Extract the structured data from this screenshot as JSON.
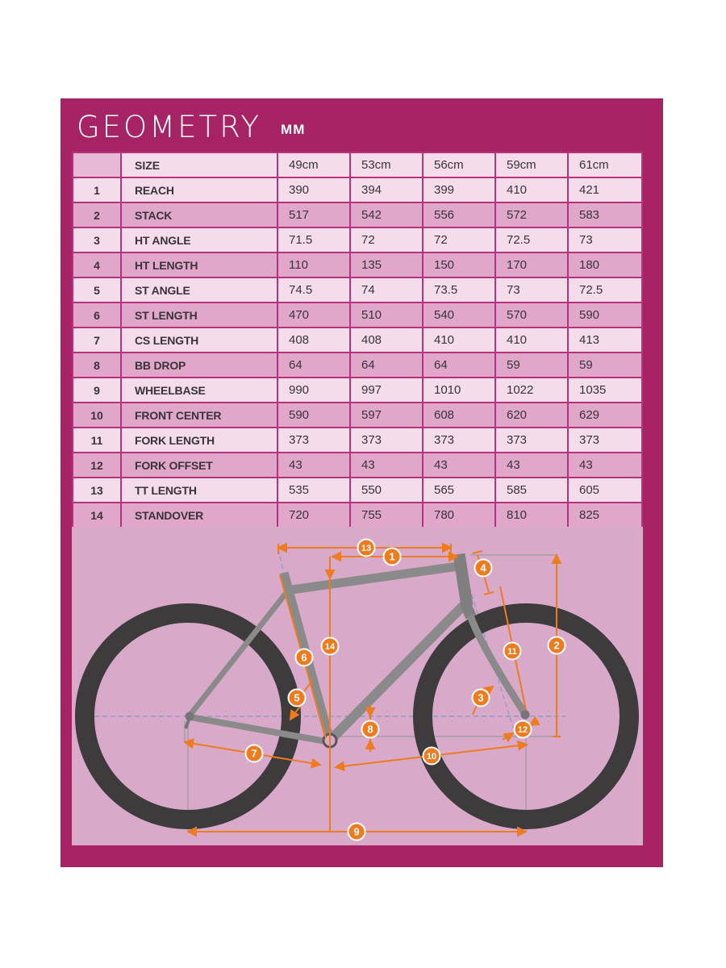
{
  "title": {
    "text": "GEOMETRY",
    "unit": "MM"
  },
  "table": {
    "size_label": "SIZE",
    "columns": [
      "49cm",
      "53cm",
      "56cm",
      "59cm",
      "61cm"
    ],
    "rows": [
      {
        "num": "1",
        "label": "REACH",
        "values": [
          "390",
          "394",
          "399",
          "410",
          "421"
        ]
      },
      {
        "num": "2",
        "label": "STACK",
        "values": [
          "517",
          "542",
          "556",
          "572",
          "583"
        ]
      },
      {
        "num": "3",
        "label": "HT ANGLE",
        "values": [
          "71.5",
          "72",
          "72",
          "72.5",
          "73"
        ]
      },
      {
        "num": "4",
        "label": "HT LENGTH",
        "values": [
          "110",
          "135",
          "150",
          "170",
          "180"
        ]
      },
      {
        "num": "5",
        "label": "ST ANGLE",
        "values": [
          "74.5",
          "74",
          "73.5",
          "73",
          "72.5"
        ]
      },
      {
        "num": "6",
        "label": "ST LENGTH",
        "values": [
          "470",
          "510",
          "540",
          "570",
          "590"
        ]
      },
      {
        "num": "7",
        "label": "CS LENGTH",
        "values": [
          "408",
          "408",
          "410",
          "410",
          "413"
        ]
      },
      {
        "num": "8",
        "label": "BB DROP",
        "values": [
          "64",
          "64",
          "64",
          "59",
          "59"
        ]
      },
      {
        "num": "9",
        "label": "WHEELBASE",
        "values": [
          "990",
          "997",
          "1010",
          "1022",
          "1035"
        ]
      },
      {
        "num": "10",
        "label": "FRONT CENTER",
        "values": [
          "590",
          "597",
          "608",
          "620",
          "629"
        ]
      },
      {
        "num": "11",
        "label": "FORK LENGTH",
        "values": [
          "373",
          "373",
          "373",
          "373",
          "373"
        ]
      },
      {
        "num": "12",
        "label": "FORK OFFSET",
        "values": [
          "43",
          "43",
          "43",
          "43",
          "43"
        ]
      },
      {
        "num": "13",
        "label": "TT LENGTH",
        "values": [
          "535",
          "550",
          "565",
          "585",
          "605"
        ]
      },
      {
        "num": "14",
        "label": "STANDOVER",
        "values": [
          "720",
          "755",
          "780",
          "810",
          "825"
        ]
      }
    ]
  },
  "diagram": {
    "callouts": [
      "1",
      "2",
      "3",
      "4",
      "5",
      "6",
      "7",
      "8",
      "9",
      "10",
      "11",
      "12",
      "13",
      "14"
    ]
  },
  "colors": {
    "panel": "#a62465",
    "table_border": "#b6337c",
    "row_light": "#f5dcea",
    "row_dark": "#e0a7ca",
    "diagram_bg": "#d8a9c9",
    "accent_orange": "#ee7c1f",
    "wheel": "#3d3b3c",
    "frame": "#8a8a8a"
  }
}
